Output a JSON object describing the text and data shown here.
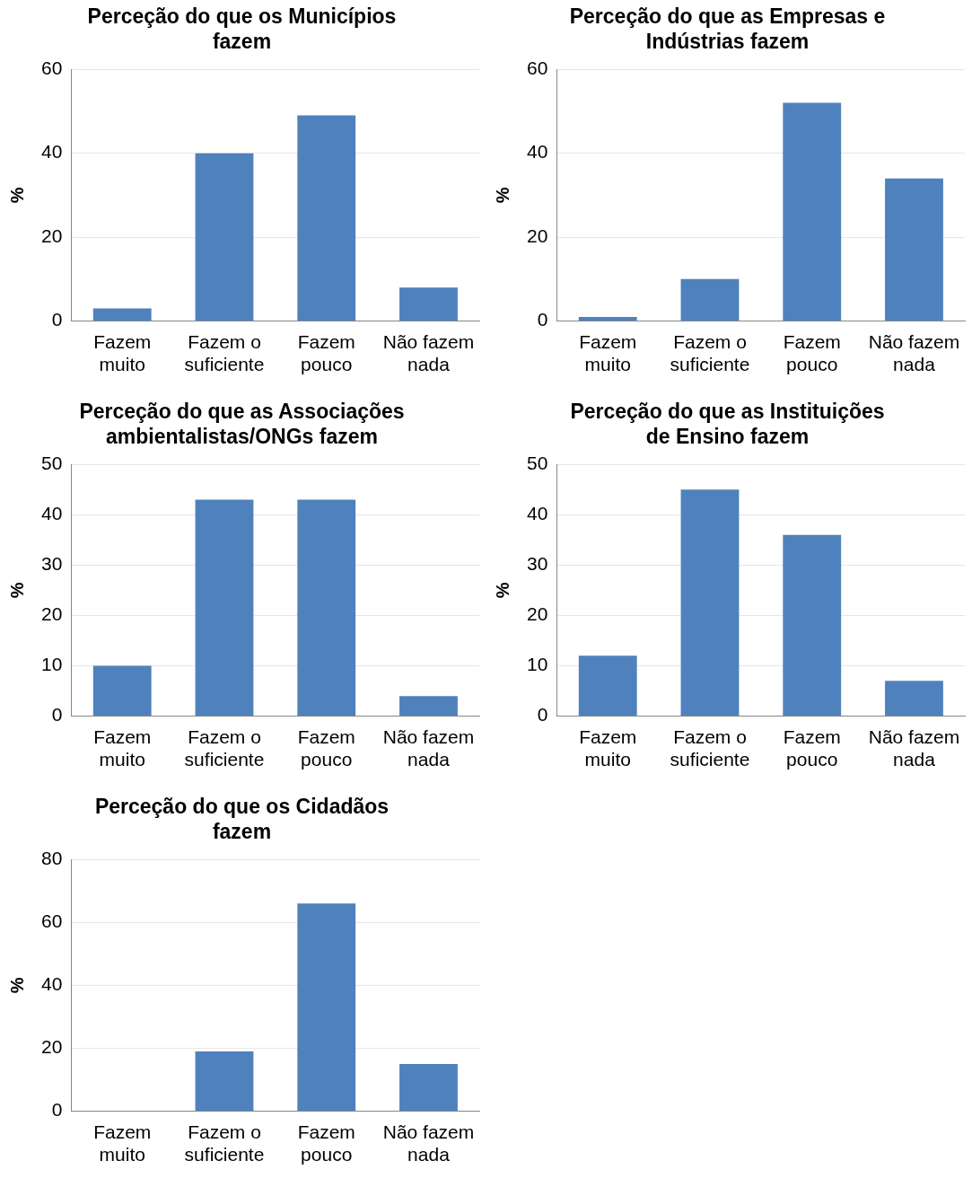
{
  "chart_data": [
    {
      "type": "bar",
      "title": "Perceção do que os Municípios fazem",
      "ylabel": "%",
      "categories": [
        "Fazem muito",
        "Fazem o suficiente",
        "Fazem pouco",
        "Não fazem nada"
      ],
      "values": [
        3,
        40,
        49,
        8
      ],
      "color": "#4f81bd",
      "ylim": [
        0,
        60
      ],
      "yticks": [
        0,
        20,
        40,
        60
      ],
      "grid": "y",
      "legend": false
    },
    {
      "type": "bar",
      "title": "Perceção do que as Empresas e Indústrias fazem",
      "ylabel": "%",
      "categories": [
        "Fazem muito",
        "Fazem o suficiente",
        "Fazem pouco",
        "Não fazem nada"
      ],
      "values": [
        1,
        10,
        52,
        34
      ],
      "color": "#4f81bd",
      "ylim": [
        0,
        60
      ],
      "yticks": [
        0,
        20,
        40,
        60
      ],
      "grid": "y",
      "legend": false
    },
    {
      "type": "bar",
      "title": "Perceção do que as Associações ambientalistas/ONGs fazem",
      "ylabel": "%",
      "categories": [
        "Fazem muito",
        "Fazem o suficiente",
        "Fazem pouco",
        "Não fazem nada"
      ],
      "values": [
        10,
        43,
        43,
        4
      ],
      "color": "#4f81bd",
      "ylim": [
        0,
        50
      ],
      "yticks": [
        0,
        10,
        20,
        30,
        40,
        50
      ],
      "grid": "y",
      "legend": false
    },
    {
      "type": "bar",
      "title": "Perceção do que as Instituições de Ensino fazem",
      "ylabel": "%",
      "categories": [
        "Fazem muito",
        "Fazem o suficiente",
        "Fazem pouco",
        "Não fazem nada"
      ],
      "values": [
        12,
        45,
        36,
        7
      ],
      "color": "#4f81bd",
      "ylim": [
        0,
        50
      ],
      "yticks": [
        0,
        10,
        20,
        30,
        40,
        50
      ],
      "grid": "y",
      "legend": false
    },
    {
      "type": "bar",
      "title": "Perceção do que os Cidadãos fazem",
      "ylabel": "%",
      "categories": [
        "Fazem muito",
        "Fazem o suficiente",
        "Fazem pouco",
        "Não fazem nada"
      ],
      "values": [
        0,
        19,
        66,
        15
      ],
      "color": "#4f81bd",
      "ylim": [
        0,
        80
      ],
      "yticks": [
        0,
        20,
        40,
        60,
        80
      ],
      "grid": "y",
      "legend": false
    }
  ]
}
